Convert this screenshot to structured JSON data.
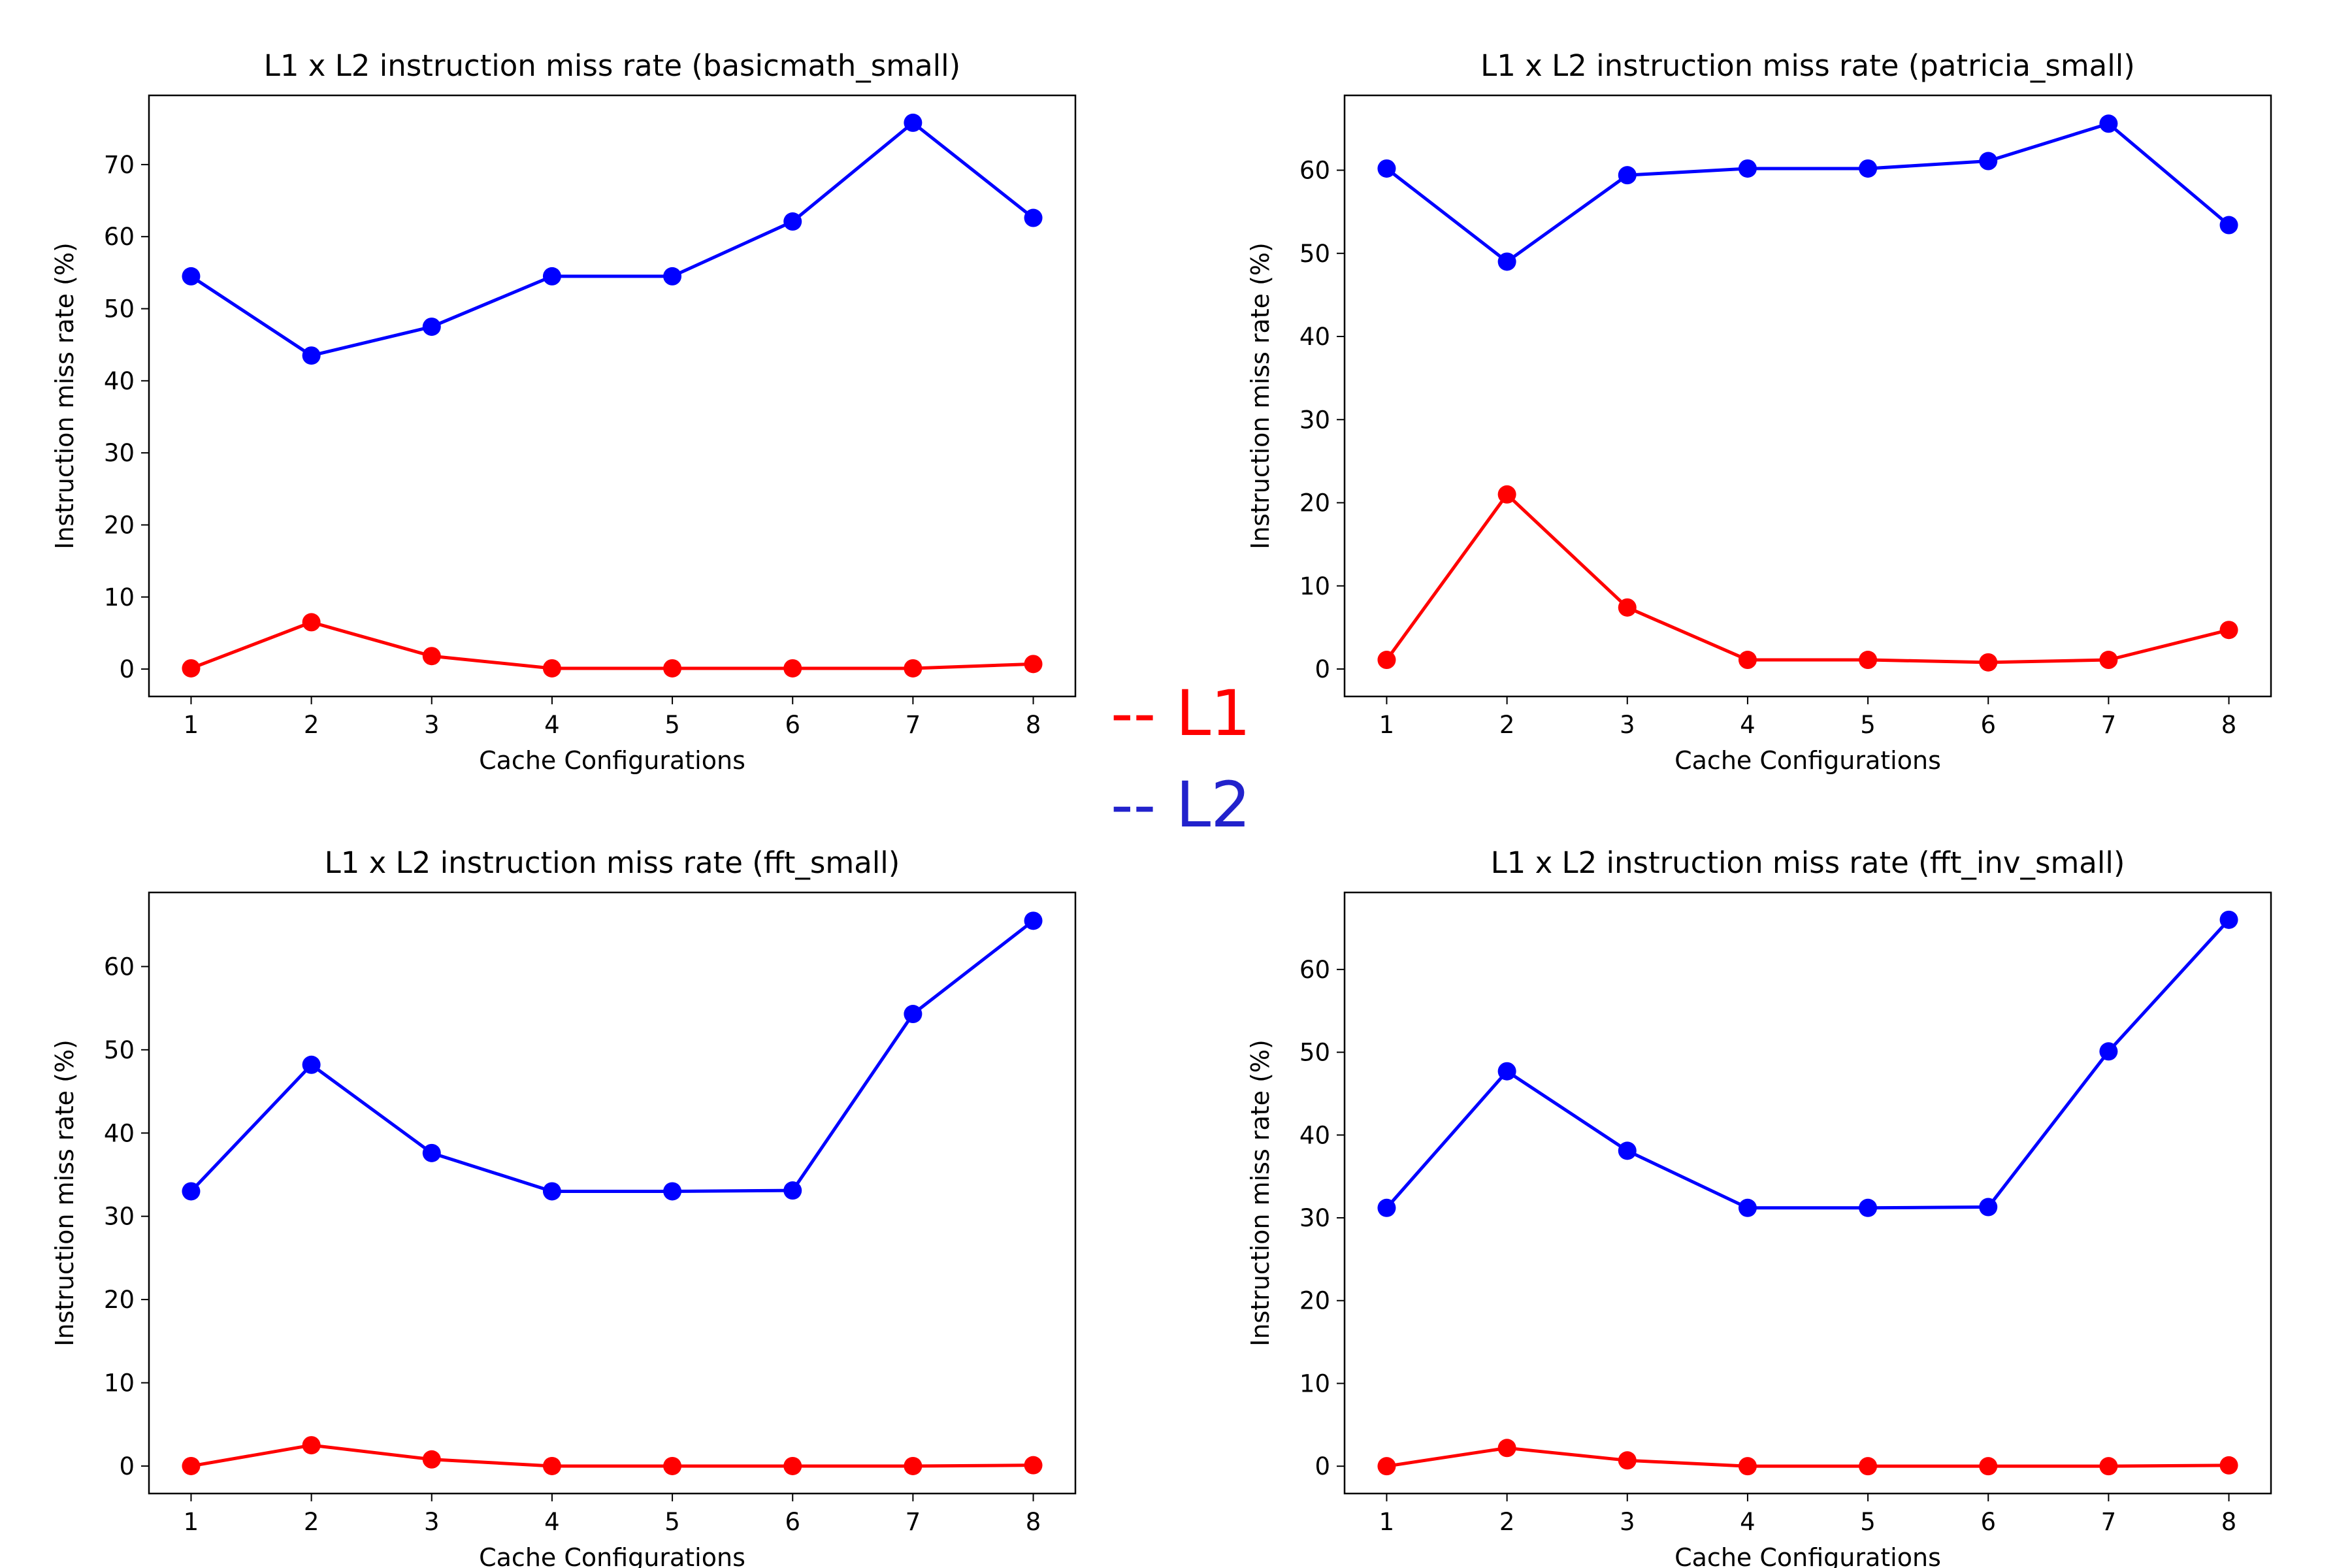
{
  "legend": {
    "items": [
      {
        "text": "-- L1",
        "color": "#ff0000"
      },
      {
        "text": "-- L2",
        "color": "#2222cc"
      }
    ]
  },
  "chart_data": [
    {
      "type": "line",
      "title": "L1 x L2 instruction miss rate (basicmath_small)",
      "xlabel": "Cache Configurations",
      "ylabel": "Instruction miss rate (%)",
      "x": [
        1,
        2,
        3,
        4,
        5,
        6,
        7,
        8
      ],
      "xlim": [
        0.65,
        8.35
      ],
      "ylim": [
        -3.8,
        79.6
      ],
      "yticks": [
        0,
        10,
        20,
        30,
        40,
        50,
        60,
        70
      ],
      "grid": false,
      "series": [
        {
          "values": [
            0.1,
            6.5,
            1.8,
            0.1,
            0.1,
            0.1,
            0.1,
            0.7
          ],
          "color": "#ff0000"
        },
        {
          "values": [
            54.5,
            43.5,
            47.5,
            54.5,
            54.5,
            62.1,
            75.8,
            62.6
          ],
          "color": "#0000ff"
        }
      ]
    },
    {
      "type": "line",
      "title": "L1 x L2 instruction miss rate (patricia_small)",
      "xlabel": "Cache Configurations",
      "ylabel": "Instruction miss rate (%)",
      "x": [
        1,
        2,
        3,
        4,
        5,
        6,
        7,
        8
      ],
      "xlim": [
        0.65,
        8.35
      ],
      "ylim": [
        -3.3,
        69.0
      ],
      "yticks": [
        0,
        10,
        20,
        30,
        40,
        50,
        60
      ],
      "grid": false,
      "series": [
        {
          "values": [
            1.1,
            21.0,
            7.4,
            1.1,
            1.1,
            0.8,
            1.1,
            4.7
          ],
          "color": "#ff0000"
        },
        {
          "values": [
            60.2,
            49.0,
            59.4,
            60.2,
            60.2,
            61.1,
            65.6,
            53.4
          ],
          "color": "#0000ff"
        }
      ]
    },
    {
      "type": "line",
      "title": "L1 x L2 instruction miss rate (fft_small)",
      "xlabel": "Cache Configurations",
      "ylabel": "Instruction miss rate (%)",
      "x": [
        1,
        2,
        3,
        4,
        5,
        6,
        7,
        8
      ],
      "xlim": [
        0.65,
        8.35
      ],
      "ylim": [
        -3.3,
        68.9
      ],
      "yticks": [
        0,
        10,
        20,
        30,
        40,
        50,
        60
      ],
      "grid": false,
      "series": [
        {
          "values": [
            0.0,
            2.5,
            0.8,
            0.0,
            0.0,
            0.0,
            0.0,
            0.1
          ],
          "color": "#ff0000"
        },
        {
          "values": [
            33.0,
            48.2,
            37.6,
            33.0,
            33.0,
            33.1,
            54.3,
            65.5
          ],
          "color": "#0000ff"
        }
      ]
    },
    {
      "type": "line",
      "title": "L1 x L2 instruction miss rate (fft_inv_small)",
      "xlabel": "Cache Configurations",
      "ylabel": "Instruction miss rate (%)",
      "x": [
        1,
        2,
        3,
        4,
        5,
        6,
        7,
        8
      ],
      "xlim": [
        0.65,
        8.35
      ],
      "ylim": [
        -3.3,
        69.3
      ],
      "yticks": [
        0,
        10,
        20,
        30,
        40,
        50,
        60
      ],
      "grid": false,
      "series": [
        {
          "values": [
            0.0,
            2.2,
            0.7,
            0.0,
            0.0,
            0.0,
            0.0,
            0.1
          ],
          "color": "#ff0000"
        },
        {
          "values": [
            31.2,
            47.7,
            38.1,
            31.2,
            31.2,
            31.3,
            50.1,
            66.0
          ],
          "color": "#0000ff"
        }
      ]
    }
  ]
}
